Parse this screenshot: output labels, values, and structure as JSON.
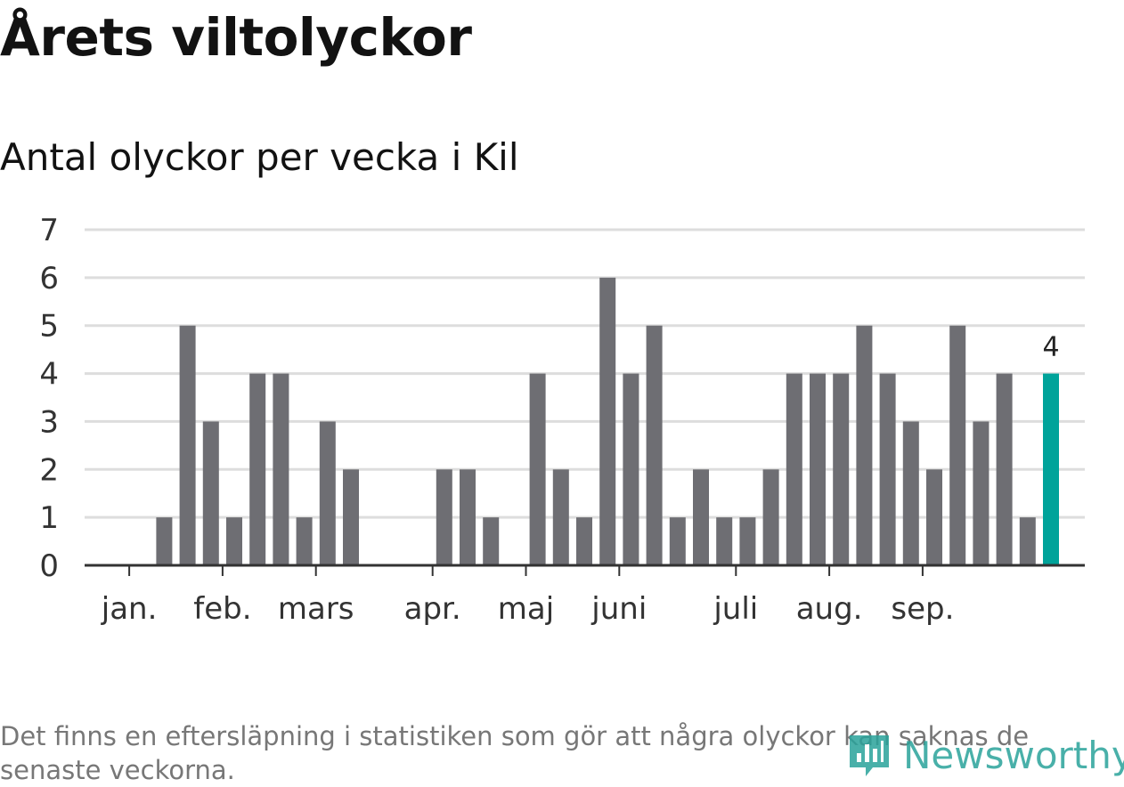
{
  "header": {
    "title": "Årets viltolyckor",
    "subtitle": "Antal olyckor per vecka i Kil"
  },
  "chart_data": {
    "type": "bar",
    "title": "Årets viltolyckor",
    "subtitle": "Antal olyckor per vecka i Kil",
    "xlabel": "",
    "ylabel": "",
    "ylim": [
      0,
      7
    ],
    "yticks": [
      "0",
      "1",
      "2",
      "3",
      "4",
      "5",
      "6",
      "7"
    ],
    "grid": true,
    "x_week_range": [
      1,
      42
    ],
    "month_ticks": [
      {
        "label": "jan.",
        "week": 1.5
      },
      {
        "label": "feb.",
        "week": 5.5
      },
      {
        "label": "mars",
        "week": 9.5
      },
      {
        "label": "apr.",
        "week": 14.5
      },
      {
        "label": "maj",
        "week": 18.5
      },
      {
        "label": "juni",
        "week": 22.5
      },
      {
        "label": "juli",
        "week": 27.5
      },
      {
        "label": "aug.",
        "week": 31.5
      },
      {
        "label": "sep.",
        "week": 35.5
      }
    ],
    "series": [
      {
        "name": "Antal olyckor",
        "weeks": [
          1,
          2,
          3,
          4,
          5,
          6,
          7,
          8,
          9,
          10,
          11,
          12,
          13,
          14,
          15,
          16,
          17,
          18,
          19,
          20,
          21,
          22,
          23,
          24,
          25,
          26,
          27,
          28,
          29,
          30,
          31,
          32,
          33,
          34,
          35,
          36,
          37,
          38,
          39,
          40,
          41,
          42
        ],
        "values": [
          0,
          0,
          1,
          5,
          3,
          1,
          4,
          4,
          1,
          3,
          2,
          0,
          0,
          0,
          2,
          2,
          1,
          0,
          4,
          2,
          1,
          6,
          4,
          5,
          1,
          2,
          1,
          1,
          2,
          4,
          4,
          4,
          5,
          4,
          3,
          2,
          5,
          3,
          4,
          1,
          4,
          0
        ]
      }
    ],
    "highlight": {
      "week": 41,
      "value": 4,
      "label": "4",
      "color": "#00a39a"
    },
    "bar_color": "#6e6e73",
    "grid_color": "#dddddd",
    "axis_color": "#333333"
  },
  "footer": {
    "note": "Det finns en eftersläpning i statistiken som gör att några olyckor kan saknas de senaste veckorna.",
    "brand": "Newsworthy",
    "brand_icon": "newsworthy-chart-icon",
    "brand_color": "#2aa39b"
  }
}
